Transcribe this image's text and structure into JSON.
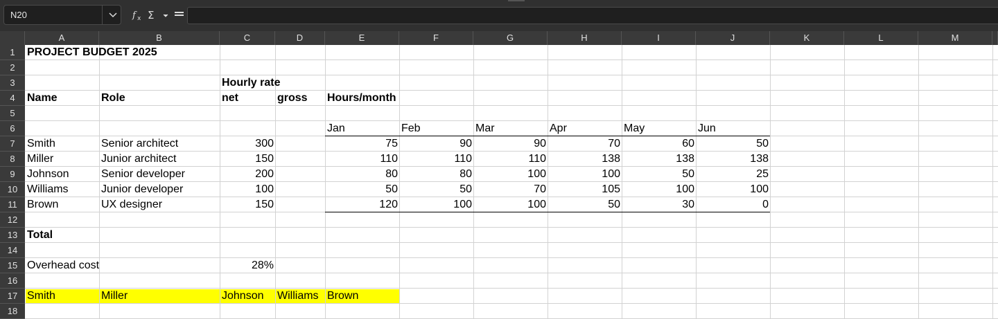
{
  "toolbar": {
    "name_box": "N20",
    "icons": [
      "chevron-down-icon",
      "function-wizard-icon",
      "sum-icon",
      "formula-icon"
    ],
    "formula_value": ""
  },
  "columns": [
    "A",
    "B",
    "C",
    "D",
    "E",
    "F",
    "G",
    "H",
    "I",
    "J",
    "K",
    "L",
    "M"
  ],
  "rows": [
    "1",
    "2",
    "3",
    "4",
    "5",
    "6",
    "7",
    "8",
    "9",
    "10",
    "11",
    "12",
    "13",
    "14",
    "15",
    "16",
    "17",
    "18"
  ],
  "sheet": {
    "title": "PROJECT BUDGET 2025",
    "hourly_rate": "Hourly rate",
    "headers": {
      "name": "Name",
      "role": "Role",
      "net": "net",
      "gross": "gross",
      "hours": "Hours/month"
    },
    "months": [
      "Jan",
      "Feb",
      "Mar",
      "Apr",
      "May",
      "Jun"
    ],
    "people": [
      {
        "name": "Smith",
        "role": "Senior architect",
        "rate": "300",
        "hours": [
          "75",
          "90",
          "90",
          "70",
          "60",
          "50"
        ]
      },
      {
        "name": "Miller",
        "role": "Junior architect",
        "rate": "150",
        "hours": [
          "110",
          "110",
          "110",
          "138",
          "138",
          "138"
        ]
      },
      {
        "name": "Johnson",
        "role": "Senior developer",
        "rate": "200",
        "hours": [
          "80",
          "80",
          "100",
          "100",
          "50",
          "25"
        ]
      },
      {
        "name": "Williams",
        "role": "Junior developer",
        "rate": "100",
        "hours": [
          "50",
          "50",
          "70",
          "105",
          "100",
          "100"
        ]
      },
      {
        "name": "Brown",
        "role": "UX designer",
        "rate": "150",
        "hours": [
          "120",
          "100",
          "100",
          "50",
          "30",
          "0"
        ]
      }
    ],
    "total_label": "Total",
    "overhead_label": "Overhead cost",
    "overhead_value": "28%",
    "highlight_row": [
      "Smith",
      "Miller",
      "Johnson",
      "Williams",
      "Brown"
    ],
    "highlight_color": "#ffff00"
  }
}
